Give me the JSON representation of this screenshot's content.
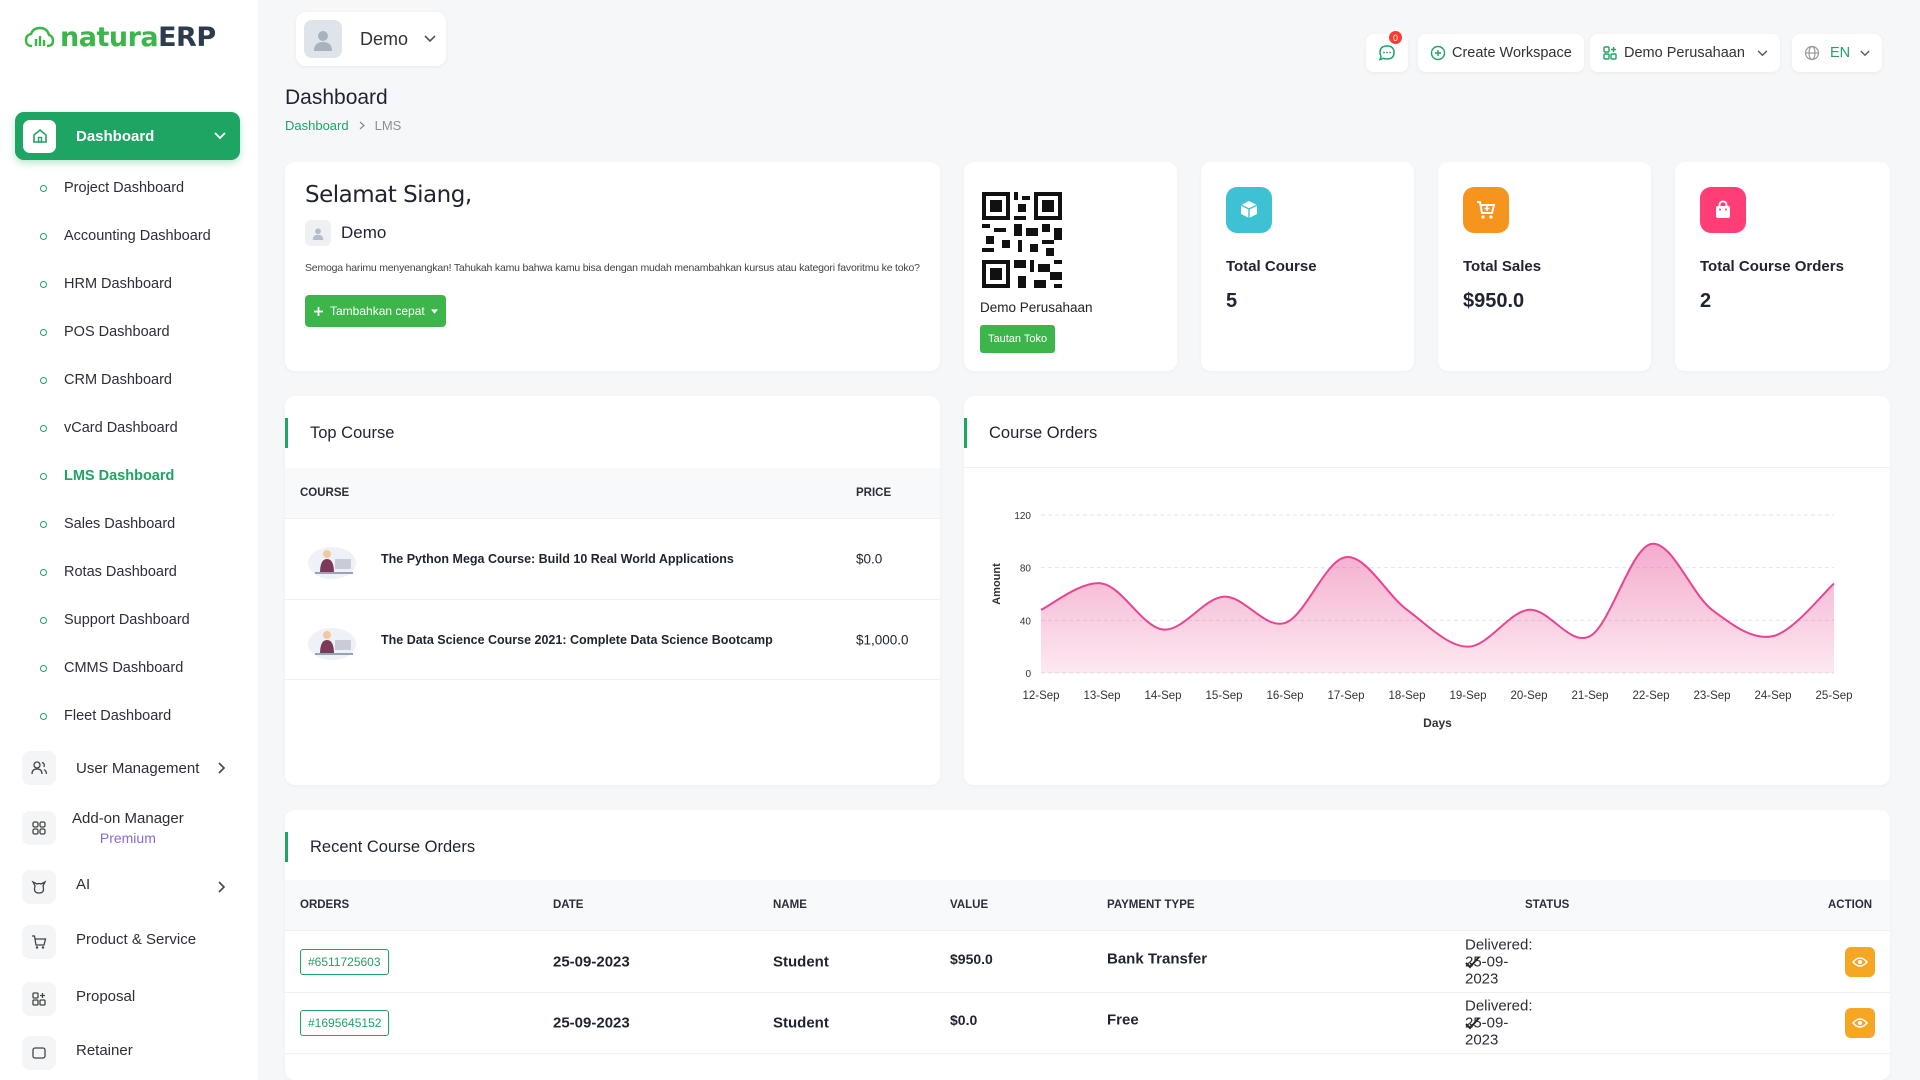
{
  "brand": {
    "prefix": "natura",
    "suffix": "ERP"
  },
  "sidebar": {
    "active": {
      "label": "Dashboard"
    },
    "sub_items": [
      {
        "label": "Project Dashboard"
      },
      {
        "label": "Accounting Dashboard"
      },
      {
        "label": "HRM Dashboard"
      },
      {
        "label": "POS Dashboard"
      },
      {
        "label": "CRM Dashboard"
      },
      {
        "label": "vCard Dashboard"
      },
      {
        "label": "LMS Dashboard"
      },
      {
        "label": "Sales Dashboard"
      },
      {
        "label": "Rotas Dashboard"
      },
      {
        "label": "Support Dashboard"
      },
      {
        "label": "CMMS Dashboard"
      },
      {
        "label": "Fleet Dashboard"
      }
    ],
    "items": [
      {
        "label": "User Management",
        "icon": "users-icon"
      },
      {
        "label": "Add-on Manager",
        "sub": "Premium",
        "icon": "grid-icon"
      },
      {
        "label": "AI",
        "icon": "ai-icon"
      },
      {
        "label": "Product & Service",
        "icon": "cart-icon"
      },
      {
        "label": "Proposal",
        "icon": "proposal-icon"
      },
      {
        "label": "Retainer",
        "icon": "retainer-icon"
      }
    ]
  },
  "topbar": {
    "user": "Demo",
    "notif_count": "0",
    "create_workspace": "Create Workspace",
    "workspace": "Demo Perusahaan",
    "lang": "EN"
  },
  "page": {
    "title": "Dashboard",
    "breadcrumb": [
      "Dashboard",
      "LMS"
    ]
  },
  "welcome": {
    "greeting": "Selamat Siang,",
    "user": "Demo",
    "message": "Semoga harimu menyenangkan! Tahukah kamu bahwa kamu bisa dengan mudah menambahkan kursus atau kategori favoritmu ke toko?",
    "quick_add": "Tambahkan cepat"
  },
  "store": {
    "name": "Demo Perusahaan",
    "link_label": "Tautan Toko"
  },
  "stats": [
    {
      "label": "Total Course",
      "value": "5",
      "color": "#3ec1d3"
    },
    {
      "label": "Total Sales",
      "value": "$950.0",
      "color": "#f7941d"
    },
    {
      "label": "Total Course Orders",
      "value": "2",
      "color": "#ff3e76"
    }
  ],
  "top_course": {
    "title": "Top Course",
    "columns": [
      "COURSE",
      "PRICE"
    ],
    "rows": [
      {
        "name": "The Python Mega Course: Build 10 Real World Applications",
        "price": "$0.0"
      },
      {
        "name": "The Data Science Course 2021: Complete Data Science Bootcamp",
        "price": "$1,000.0"
      }
    ]
  },
  "course_orders": {
    "title": "Course Orders"
  },
  "chart_data": {
    "type": "area",
    "title": "Course Orders",
    "xlabel": "Days",
    "ylabel": "Amount",
    "categories": [
      "12-Sep",
      "13-Sep",
      "14-Sep",
      "15-Sep",
      "16-Sep",
      "17-Sep",
      "18-Sep",
      "19-Sep",
      "20-Sep",
      "21-Sep",
      "22-Sep",
      "23-Sep",
      "24-Sep",
      "25-Sep"
    ],
    "values": [
      48,
      68,
      33,
      58,
      38,
      88,
      48,
      20,
      48,
      28,
      98,
      48,
      28,
      68
    ],
    "ylim": [
      0,
      120
    ],
    "yticks": [
      0,
      40,
      80,
      120
    ],
    "grid": true,
    "color": "#e7458f"
  },
  "recent_orders": {
    "title": "Recent Course Orders",
    "columns": [
      "ORDERS",
      "DATE",
      "NAME",
      "VALUE",
      "PAYMENT TYPE",
      "STATUS",
      "ACTION"
    ],
    "rows": [
      {
        "id": "#6511725603",
        "date": "25-09-2023",
        "name": "Student",
        "value": "$950.0",
        "payment": "Bank Transfer",
        "status": "Delivered: 25-09-2023"
      },
      {
        "id": "#1695645152",
        "date": "25-09-2023",
        "name": "Student",
        "value": "$0.0",
        "payment": "Free",
        "status": "Delivered: 25-09-2023"
      }
    ]
  }
}
